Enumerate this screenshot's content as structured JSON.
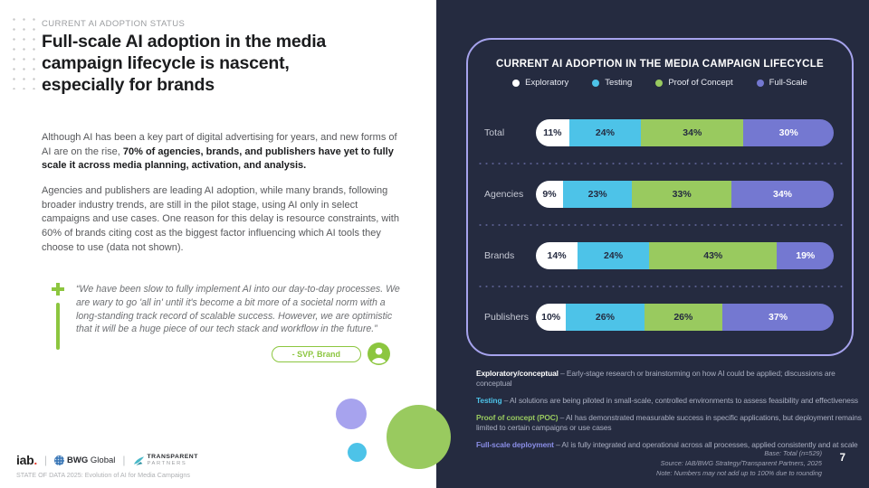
{
  "colors": {
    "dark_background": "#252B40",
    "panel_border": "#A6A3ED",
    "exploratory": "#FFFFFF",
    "testing": "#4DC3E8",
    "proof_of_concept": "#99CA5F",
    "full_scale": "#7478D1",
    "accent_green": "#8CC63F",
    "iab_red": "#E43D30"
  },
  "left_panel": {
    "eyebrow": "CURRENT AI ADOPTION STATUS",
    "title": "Full-scale AI adoption in the media campaign lifecycle is nascent, especially for brands",
    "paragraph1_lead": "Although AI has been a key part of digital advertising for years, and new forms of AI are on the rise, ",
    "paragraph1_bold": "70% of agencies, brands, and publishers have yet to fully scale it across media planning, activation, and analysis.",
    "paragraph2": "Agencies and publishers are leading AI adoption, while many brands, following broader industry trends, are still in the pilot stage, using AI only in select campaigns and use cases. One reason for this delay is resource constraints, with 60% of brands citing cost as the biggest factor influencing which AI tools they choose to use (data not shown).",
    "quote_text": "“We have been slow to fully implement AI into our day-to-day processes. We are wary to go 'all in' until it's become a bit more of a societal norm with a long-standing track record of scalable success. However, we are optimistic that it will be a huge piece of our tech stack and workflow in the future.”",
    "quote_attribution": "- SVP, Brand",
    "logos": {
      "iab_text": "iab",
      "iab_dot": ".",
      "bwg_bold": "BWG",
      "bwg_light": " Global",
      "tp_top": "TRANSPARENT",
      "tp_bottom": "PARTNERS"
    },
    "footer_line": "STATE OF DATA 2025: Evolution of AI for Media Campaigns"
  },
  "chart_data": {
    "type": "bar",
    "orientation": "horizontal",
    "stacked": true,
    "title": "CURRENT AI ADOPTION IN THE MEDIA CAMPAIGN LIFECYCLE",
    "value_format": "percent",
    "legend_position": "top",
    "categories": [
      "Total",
      "Agencies",
      "Brands",
      "Publishers"
    ],
    "series": [
      {
        "name": "Exploratory",
        "color": "#FFFFFF",
        "label_color": "#252B40",
        "values": [
          11,
          9,
          14,
          10
        ]
      },
      {
        "name": "Testing",
        "color": "#4DC3E8",
        "label_color": "#252B40",
        "values": [
          24,
          23,
          24,
          26
        ]
      },
      {
        "name": "Proof of Concept",
        "color": "#99CA5F",
        "label_color": "#252B40",
        "values": [
          34,
          33,
          43,
          26
        ]
      },
      {
        "name": "Full-Scale",
        "color": "#7478D1",
        "label_color": "#FFFFFF",
        "values": [
          30,
          34,
          19,
          37
        ]
      }
    ]
  },
  "right_panel": {
    "definitions": [
      {
        "term": "Exploratory/conceptual",
        "color": "#FFFFFF",
        "text": " – Early-stage research or brainstorming on how AI could be applied; discussions are conceptual"
      },
      {
        "term": "Testing",
        "color": "#4DC3E8",
        "text": " – AI solutions are being piloted in small-scale, controlled environments to assess feasibility and effectiveness"
      },
      {
        "term": "Proof of concept (POC)",
        "color": "#99CA5F",
        "text": " – AI has demonstrated measurable success in specific applications, but deployment remains limited to certain campaigns or use cases"
      },
      {
        "term": "Full-scale deployment",
        "color": "#8A8EE6",
        "text": " – AI is fully integrated and operational across all processes, applied consistently and at scale"
      }
    ],
    "notes": [
      "Base: Total (n=529)",
      "Source: IAB/BWG Strategy/Transparent Partners, 2025",
      "Note: Numbers may not add up to 100% due to rounding"
    ],
    "page_number": "7"
  }
}
